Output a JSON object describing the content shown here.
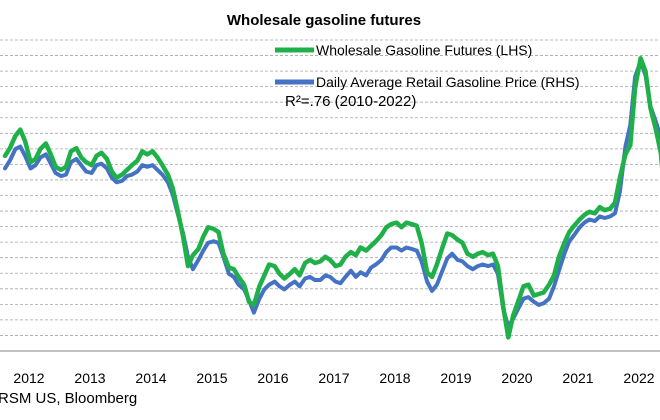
{
  "chart_data": {
    "type": "line",
    "title": "Wholesale gasoline futures",
    "source": "RSM US, Bloomberg",
    "annotation": "R²=.76 (2010-2022)",
    "x_ticks": [
      "2012",
      "2013",
      "2014",
      "2015",
      "2016",
      "2017",
      "2018",
      "2019",
      "2020",
      "2021",
      "2022"
    ],
    "xlim": [
      2012.0,
      2022.85
    ],
    "grid": true,
    "legend_position": "top-right",
    "series": [
      {
        "name": "Wholesale Gasoline Futures (LHS)",
        "color": "#1fb04a",
        "axis": "left",
        "x": [
          2012.0,
          2012.08,
          2012.17,
          2012.25,
          2012.33,
          2012.42,
          2012.5,
          2012.58,
          2012.67,
          2012.75,
          2012.83,
          2012.92,
          2013.0,
          2013.08,
          2013.17,
          2013.25,
          2013.33,
          2013.42,
          2013.5,
          2013.58,
          2013.67,
          2013.75,
          2013.83,
          2013.92,
          2014.0,
          2014.08,
          2014.17,
          2014.25,
          2014.33,
          2014.42,
          2014.5,
          2014.58,
          2014.67,
          2014.75,
          2014.83,
          2014.92,
          2015.0,
          2015.08,
          2015.17,
          2015.25,
          2015.33,
          2015.42,
          2015.5,
          2015.58,
          2015.67,
          2015.75,
          2015.83,
          2015.92,
          2016.0,
          2016.08,
          2016.17,
          2016.25,
          2016.33,
          2016.42,
          2016.5,
          2016.58,
          2016.67,
          2016.75,
          2016.83,
          2016.92,
          2017.0,
          2017.08,
          2017.17,
          2017.25,
          2017.33,
          2017.42,
          2017.5,
          2017.58,
          2017.67,
          2017.75,
          2017.83,
          2017.92,
          2018.0,
          2018.08,
          2018.17,
          2018.25,
          2018.33,
          2018.42,
          2018.5,
          2018.58,
          2018.67,
          2018.75,
          2018.83,
          2018.92,
          2019.0,
          2019.08,
          2019.17,
          2019.25,
          2019.33,
          2019.42,
          2019.5,
          2019.58,
          2019.67,
          2019.75,
          2019.83,
          2019.92,
          2020.0,
          2020.08,
          2020.17,
          2020.25,
          2020.33,
          2020.42,
          2020.5,
          2020.58,
          2020.67,
          2020.75,
          2020.83,
          2020.92,
          2021.0,
          2021.08,
          2021.17,
          2021.25,
          2021.33,
          2021.42,
          2021.5,
          2021.58,
          2021.67,
          2021.75,
          2021.83,
          2021.92,
          2022.0,
          2022.08,
          2022.17,
          2022.25,
          2022.33,
          2022.42,
          2022.5,
          2022.58,
          2022.67,
          2022.75,
          2022.8
        ],
        "y": [
          2.96,
          3.06,
          3.22,
          3.3,
          3.15,
          2.88,
          2.92,
          3.05,
          3.12,
          2.98,
          2.82,
          2.78,
          2.82,
          3.02,
          3.06,
          2.94,
          2.88,
          2.84,
          2.96,
          3.0,
          2.92,
          2.76,
          2.68,
          2.72,
          2.78,
          2.84,
          2.9,
          3.02,
          2.98,
          3.02,
          2.94,
          2.84,
          2.72,
          2.54,
          2.26,
          1.92,
          1.54,
          1.68,
          1.76,
          1.92,
          2.04,
          2.02,
          1.98,
          1.7,
          1.52,
          1.5,
          1.4,
          1.3,
          1.08,
          1.04,
          1.28,
          1.42,
          1.56,
          1.54,
          1.44,
          1.38,
          1.44,
          1.5,
          1.42,
          1.58,
          1.62,
          1.58,
          1.6,
          1.66,
          1.62,
          1.54,
          1.56,
          1.66,
          1.72,
          1.68,
          1.78,
          1.74,
          1.8,
          1.86,
          1.94,
          2.04,
          2.08,
          2.1,
          2.04,
          2.1,
          2.08,
          2.06,
          1.84,
          1.46,
          1.4,
          1.56,
          1.78,
          1.96,
          1.94,
          1.88,
          1.84,
          1.7,
          1.66,
          1.7,
          1.72,
          1.68,
          1.7,
          1.54,
          1.0,
          0.62,
          0.9,
          1.1,
          1.28,
          1.3,
          1.16,
          1.18,
          1.2,
          1.3,
          1.42,
          1.66,
          1.84,
          1.98,
          2.06,
          2.14,
          2.2,
          2.24,
          2.22,
          2.3,
          2.26,
          2.28,
          2.36,
          2.68,
          2.98,
          3.1,
          3.84,
          4.22,
          4.05,
          3.58,
          3.3,
          3.0,
          2.58
        ]
      },
      {
        "name": "Daily Average Retail Gasoline Price (RHS)",
        "color": "#4472c4",
        "axis": "right",
        "x": [
          2012.0,
          2012.08,
          2012.17,
          2012.25,
          2012.33,
          2012.42,
          2012.5,
          2012.58,
          2012.67,
          2012.75,
          2012.83,
          2012.92,
          2013.0,
          2013.08,
          2013.17,
          2013.25,
          2013.33,
          2013.42,
          2013.5,
          2013.58,
          2013.67,
          2013.75,
          2013.83,
          2013.92,
          2014.0,
          2014.08,
          2014.17,
          2014.25,
          2014.33,
          2014.42,
          2014.5,
          2014.58,
          2014.67,
          2014.75,
          2014.83,
          2014.92,
          2015.0,
          2015.08,
          2015.17,
          2015.25,
          2015.33,
          2015.42,
          2015.5,
          2015.58,
          2015.67,
          2015.75,
          2015.83,
          2015.92,
          2016.0,
          2016.08,
          2016.17,
          2016.25,
          2016.33,
          2016.42,
          2016.5,
          2016.58,
          2016.67,
          2016.75,
          2016.83,
          2016.92,
          2017.0,
          2017.08,
          2017.17,
          2017.25,
          2017.33,
          2017.42,
          2017.5,
          2017.58,
          2017.67,
          2017.75,
          2017.83,
          2017.92,
          2018.0,
          2018.08,
          2018.17,
          2018.25,
          2018.33,
          2018.42,
          2018.5,
          2018.58,
          2018.67,
          2018.75,
          2018.83,
          2018.92,
          2019.0,
          2019.08,
          2019.17,
          2019.25,
          2019.33,
          2019.42,
          2019.5,
          2019.58,
          2019.67,
          2019.75,
          2019.83,
          2019.92,
          2020.0,
          2020.08,
          2020.17,
          2020.25,
          2020.33,
          2020.42,
          2020.5,
          2020.58,
          2020.67,
          2020.75,
          2020.83,
          2020.92,
          2021.0,
          2021.08,
          2021.17,
          2021.25,
          2021.33,
          2021.42,
          2021.5,
          2021.58,
          2021.67,
          2021.75,
          2021.83,
          2021.92,
          2022.0,
          2022.08,
          2022.17,
          2022.25,
          2022.33,
          2022.42,
          2022.5,
          2022.58,
          2022.67,
          2022.75,
          2022.8
        ],
        "y": [
          2.8,
          2.9,
          3.05,
          3.08,
          2.96,
          2.8,
          2.84,
          2.94,
          2.98,
          2.86,
          2.74,
          2.7,
          2.72,
          2.88,
          2.92,
          2.84,
          2.76,
          2.74,
          2.84,
          2.86,
          2.8,
          2.68,
          2.62,
          2.64,
          2.7,
          2.72,
          2.76,
          2.84,
          2.82,
          2.84,
          2.78,
          2.72,
          2.62,
          2.46,
          2.22,
          1.96,
          1.66,
          1.5,
          1.62,
          1.74,
          1.84,
          1.86,
          1.84,
          1.66,
          1.44,
          1.4,
          1.3,
          1.24,
          1.1,
          0.94,
          1.12,
          1.24,
          1.3,
          1.34,
          1.28,
          1.24,
          1.3,
          1.34,
          1.28,
          1.38,
          1.4,
          1.36,
          1.36,
          1.42,
          1.4,
          1.34,
          1.32,
          1.4,
          1.48,
          1.4,
          1.46,
          1.42,
          1.52,
          1.56,
          1.62,
          1.72,
          1.78,
          1.78,
          1.74,
          1.78,
          1.76,
          1.74,
          1.6,
          1.34,
          1.22,
          1.3,
          1.48,
          1.64,
          1.7,
          1.62,
          1.6,
          1.54,
          1.5,
          1.54,
          1.56,
          1.54,
          1.56,
          1.44,
          0.98,
          0.76,
          0.86,
          1.0,
          1.12,
          1.14,
          1.08,
          1.04,
          1.06,
          1.12,
          1.28,
          1.48,
          1.7,
          1.86,
          1.94,
          2.04,
          2.1,
          2.14,
          2.12,
          2.18,
          2.16,
          2.18,
          2.22,
          2.5,
          3.08,
          3.36,
          3.98,
          4.18,
          4.0,
          3.6,
          3.4,
          3.2,
          3.02
        ]
      }
    ]
  }
}
